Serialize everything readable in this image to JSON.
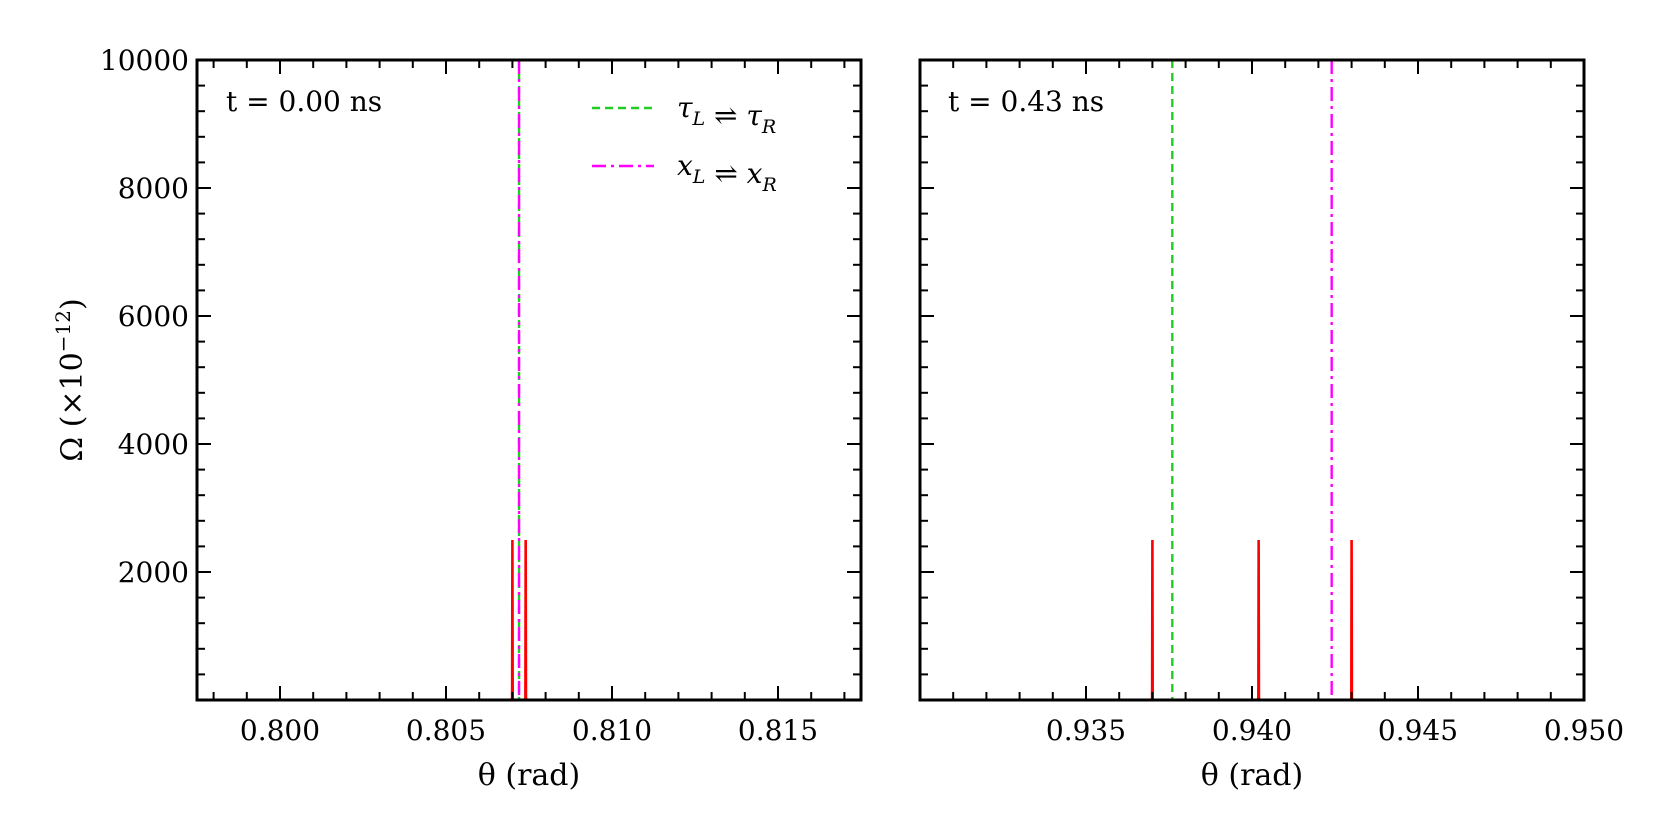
{
  "chart_data": [
    {
      "type": "line",
      "panel": "left",
      "title": "",
      "annotation": "t = 0.00 ns",
      "xlabel": "θ (rad)",
      "ylabel": "Ω (×10⁻¹²)",
      "ylabel_main": "Ω (×10",
      "ylabel_exp": "−12",
      "ylabel_close": ")",
      "xlim": [
        0.7975,
        0.8175
      ],
      "ylim": [
        0,
        10000
      ],
      "xticks": [
        0.8,
        0.805,
        0.81,
        0.815
      ],
      "xtick_labels": [
        "0.800",
        "0.805",
        "0.810",
        "0.815"
      ],
      "yticks": [
        2000,
        4000,
        6000,
        8000,
        10000
      ],
      "ytick_labels": [
        "2000",
        "4000",
        "6000",
        "8000",
        "10000"
      ],
      "grid": false,
      "series": [
        {
          "name": "Ω",
          "color": "#ff0000",
          "style": "solid",
          "peaks": [
            0.807,
            0.8074
          ],
          "baseline": 0
        }
      ],
      "vlines": [
        {
          "name": "τL ⇌ τR",
          "x": 0.8072,
          "color": "#22cc22",
          "style": "dashed"
        },
        {
          "name": "xL ⇌ xR",
          "x": 0.8072,
          "color": "#ff00ff",
          "style": "dashdot"
        }
      ],
      "legend": {
        "location": "top-right",
        "entries": [
          {
            "label": "τ",
            "sub1": "L",
            "mid": " ⇌ τ",
            "sub2": "R",
            "color": "#22cc22",
            "style": "dashed"
          },
          {
            "label": "x",
            "sub1": "L",
            "mid": " ⇌ x",
            "sub2": "R",
            "color": "#ff00ff",
            "style": "dashdot"
          }
        ]
      }
    },
    {
      "type": "line",
      "panel": "right",
      "title": "",
      "annotation": "t = 0.43 ns",
      "xlabel": "θ (rad)",
      "xlim": [
        0.93,
        0.95
      ],
      "ylim": [
        0,
        10000
      ],
      "xticks": [
        0.935,
        0.94,
        0.945,
        0.95
      ],
      "xtick_labels": [
        "0.935",
        "0.940",
        "0.945",
        "0.950"
      ],
      "yticks": [
        2000,
        4000,
        6000,
        8000,
        10000
      ],
      "grid": false,
      "series": [
        {
          "name": "Ω",
          "color": "#ff0000",
          "style": "solid",
          "peaks": [
            0.937,
            0.9402,
            0.943
          ],
          "baseline": 0
        }
      ],
      "vlines": [
        {
          "name": "τL ⇌ τR",
          "x": 0.9376,
          "color": "#22cc22",
          "style": "dashed"
        },
        {
          "name": "xL ⇌ xR",
          "x": 0.9424,
          "color": "#ff00ff",
          "style": "dashdot"
        }
      ]
    }
  ]
}
